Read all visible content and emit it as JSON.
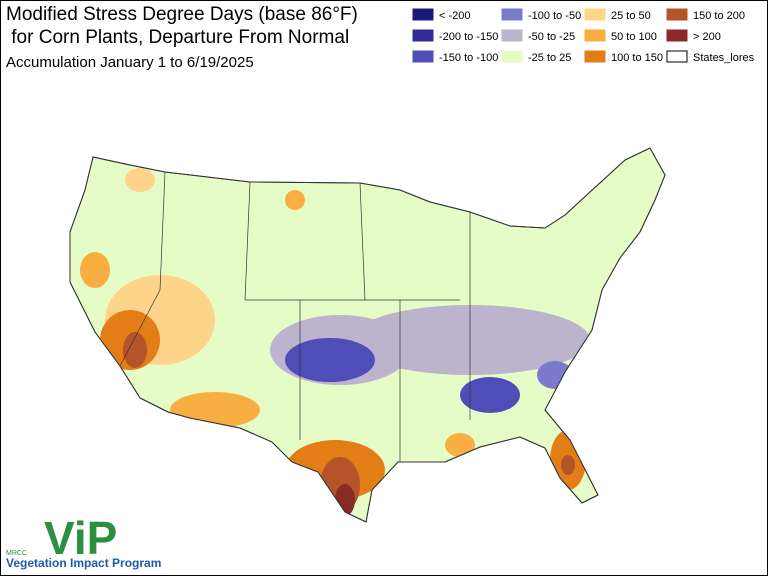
{
  "header": {
    "title_lines": [
      "Modified Stress Degree Days (base 86°F)",
      " for Corn Plants, Departure From Normal"
    ],
    "subtitle": "Accumulation January 1 to 6/19/2025"
  },
  "legend": {
    "items": [
      {
        "label": "< -200",
        "color": "#1c1a78"
      },
      {
        "label": "-200 to -150",
        "color": "#302d96"
      },
      {
        "label": "-150 to -100",
        "color": "#4f4db8"
      },
      {
        "label": "-100 to -50",
        "color": "#7b7acc"
      },
      {
        "label": "-50 to -25",
        "color": "#bcb4cc"
      },
      {
        "label": "-25 to 25",
        "color": "#e6fcc6"
      },
      {
        "label": "25 to 50",
        "color": "#fdd48a"
      },
      {
        "label": "50 to 100",
        "color": "#f9ae42"
      },
      {
        "label": "100 to 150",
        "color": "#e37e17"
      },
      {
        "label": "150 to 200",
        "color": "#b5532a"
      },
      {
        "label": "> 200",
        "color": "#8a2a24"
      },
      {
        "label": "States_lores",
        "color": "#ffffff"
      }
    ]
  },
  "logo": {
    "mark": "ViP",
    "org": "MRCC",
    "name": "Vegetation Impact Program"
  }
}
